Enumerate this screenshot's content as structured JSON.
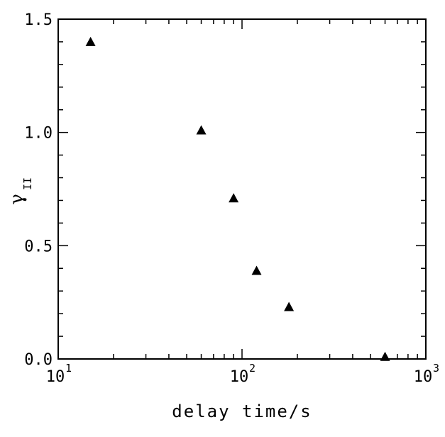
{
  "chart_data": {
    "type": "scatter",
    "title": "",
    "xlabel": "delay time/s",
    "ylabel": "γ",
    "ylabel_subscript": "II",
    "x_scale": "log",
    "xlim": [
      10,
      1000
    ],
    "ylim": [
      0.0,
      1.5
    ],
    "x_ticks": [
      {
        "base": "10",
        "exp": "1"
      },
      {
        "base": "10",
        "exp": "2"
      },
      {
        "base": "10",
        "exp": "3"
      }
    ],
    "y_ticks": [
      "0.0",
      "0.5",
      "1.0",
      "1.5"
    ],
    "grid": false,
    "marker": "filled-triangle",
    "series": [
      {
        "x": [
          15,
          60,
          90,
          120,
          180,
          600
        ],
        "y": [
          1.4,
          1.01,
          0.71,
          0.39,
          0.23,
          0.01
        ]
      }
    ]
  }
}
